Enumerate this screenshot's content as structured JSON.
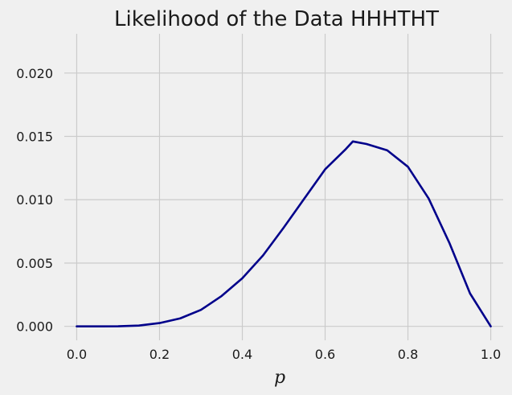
{
  "chart_data": {
    "type": "line",
    "title": "Likelihood of the Data HHHTHT",
    "xlabel": "p",
    "ylabel": "",
    "xlim": [
      -0.03,
      1.03
    ],
    "ylim": [
      -0.0011,
      0.0231
    ],
    "grid": true,
    "xticks": [
      0.0,
      0.2,
      0.4,
      0.6,
      0.8,
      1.0
    ],
    "xtick_labels": [
      "0.0",
      "0.2",
      "0.4",
      "0.6",
      "0.8",
      "1.0"
    ],
    "yticks": [
      0.0,
      0.005,
      0.01,
      0.015,
      0.02
    ],
    "ytick_labels": [
      "0.000",
      "0.005",
      "0.010",
      "0.015",
      "0.020"
    ],
    "series": [
      {
        "color": "#00008b",
        "x": [
          0.0,
          0.05,
          0.1,
          0.15,
          0.2,
          0.25,
          0.3,
          0.35,
          0.4,
          0.45,
          0.5,
          0.55,
          0.6,
          0.65,
          0.667,
          0.7,
          0.75,
          0.8,
          0.85,
          0.9,
          0.95,
          1.0
        ],
        "y": [
          0.0,
          1e-07,
          8.1e-06,
          6.1e-05,
          0.00026,
          0.00063,
          0.0013,
          0.0024,
          0.0038,
          0.0056,
          0.0078,
          0.0101,
          0.0124,
          0.014,
          0.0146,
          0.0144,
          0.0139,
          0.0126,
          0.0101,
          0.0066,
          0.0026,
          0.0
        ]
      }
    ]
  }
}
